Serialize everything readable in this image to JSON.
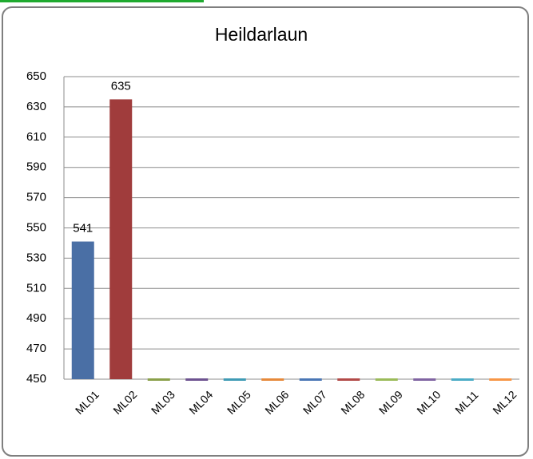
{
  "chart_data": {
    "type": "bar",
    "title": "Heildarlaun",
    "categories": [
      "ML01",
      "ML02",
      "ML03",
      "ML04",
      "ML05",
      "ML06",
      "ML07",
      "ML08",
      "ML09",
      "ML10",
      "ML11",
      "ML12"
    ],
    "values": [
      541,
      635,
      450,
      450,
      450,
      450,
      450,
      450,
      450,
      450,
      450,
      450
    ],
    "value_labels": [
      "541",
      "635",
      null,
      null,
      null,
      null,
      null,
      null,
      null,
      null,
      null,
      null
    ],
    "colors": [
      "#4a6fa5",
      "#a03c3c",
      "#8aa04a",
      "#6d5290",
      "#3f9bb5",
      "#e6893a",
      "#4a76b5",
      "#b24a48",
      "#9bbb59",
      "#8064a2",
      "#4bacc6",
      "#f79646"
    ],
    "ylim": [
      450,
      650
    ],
    "yticks": [
      450,
      470,
      490,
      510,
      530,
      550,
      570,
      590,
      610,
      630,
      650
    ],
    "grid": true
  }
}
